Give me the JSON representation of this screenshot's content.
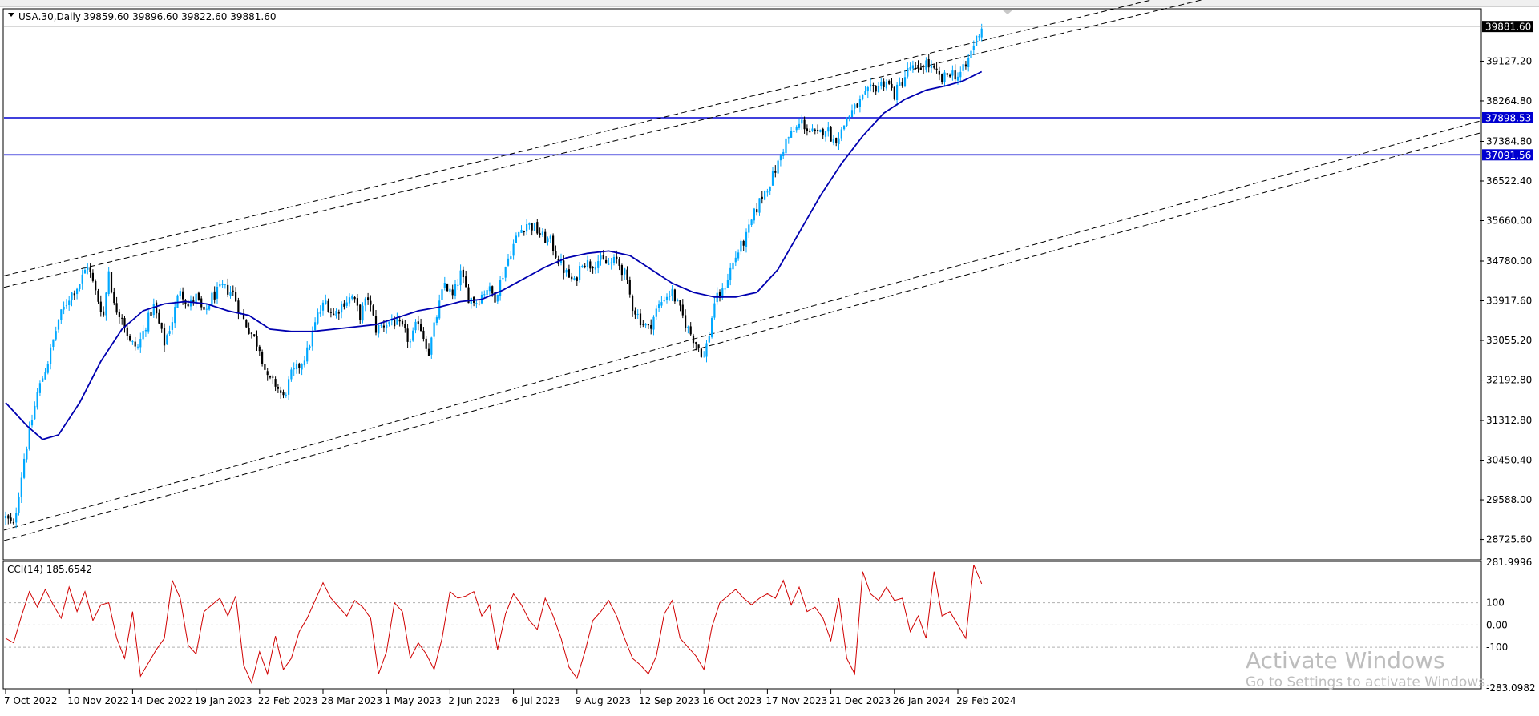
{
  "header": {
    "symbol_label": "USA.30,Daily",
    "ohlc": "39859.60 39896.60 39822.60 39881.60"
  },
  "indicator": {
    "label": "CCI(14) 185.6542",
    "scale_labels": [
      "281.9996",
      "100",
      "0.00",
      "-100",
      "-283.0982"
    ],
    "levels": [
      100,
      0,
      -100
    ]
  },
  "watermark": {
    "title": "Activate Windows",
    "subtitle": "Go to Settings to activate Windows."
  },
  "colors": {
    "bull": "#00a8ff",
    "bear": "#000000",
    "ma": "#0000b0",
    "hline": "#0000d0",
    "cci": "#d00000",
    "price_tag": "#000000",
    "hline_tag": "#0000d0"
  },
  "chart_data": {
    "type": "candlestick",
    "instrument": "USA.30",
    "timeframe": "Daily",
    "y_range": [
      28300,
      40250
    ],
    "y_tick_labels": [
      "39881.60",
      "39127.20",
      "38264.80",
      "37384.80",
      "36522.40",
      "35660.00",
      "34780.00",
      "33917.60",
      "33055.20",
      "32192.80",
      "31312.80",
      "30450.40",
      "29588.00",
      "28725.60"
    ],
    "y_tick_values": [
      39881.6,
      39127.2,
      38264.8,
      37384.8,
      36522.4,
      35660.0,
      34780.0,
      33917.6,
      33055.2,
      32192.8,
      31312.8,
      30450.4,
      29588.0,
      28725.6
    ],
    "x_labels": [
      "7 Oct 2022",
      "10 Nov 2022",
      "14 Dec 2022",
      "19 Jan 2023",
      "22 Feb 2023",
      "28 Mar 2023",
      "1 May 2023",
      "2 Jun 2023",
      "6 Jul 2023",
      "9 Aug 2023",
      "12 Sep 2023",
      "16 Oct 2023",
      "17 Nov 2023",
      "21 Dec 2023",
      "26 Jan 2024",
      "29 Feb 2024"
    ],
    "x_label_bars": [
      0,
      24,
      48,
      72,
      96,
      120,
      144,
      168,
      192,
      216,
      240,
      264,
      288,
      312,
      336,
      360
    ],
    "total_bars": 370,
    "price_path": [
      [
        0,
        29200
      ],
      [
        3,
        29000
      ],
      [
        7,
        30500
      ],
      [
        12,
        31900
      ],
      [
        16,
        32600
      ],
      [
        20,
        33500
      ],
      [
        24,
        34000
      ],
      [
        28,
        34300
      ],
      [
        31,
        34700
      ],
      [
        34,
        34100
      ],
      [
        37,
        33600
      ],
      [
        39,
        34600
      ],
      [
        41,
        33800
      ],
      [
        44,
        33600
      ],
      [
        47,
        33000
      ],
      [
        50,
        32900
      ],
      [
        53,
        33400
      ],
      [
        56,
        33800
      ],
      [
        60,
        33000
      ],
      [
        63,
        33500
      ],
      [
        66,
        34200
      ],
      [
        69,
        33800
      ],
      [
        72,
        34000
      ],
      [
        75,
        33600
      ],
      [
        78,
        34000
      ],
      [
        82,
        34200
      ],
      [
        86,
        34100
      ],
      [
        89,
        33600
      ],
      [
        92,
        33300
      ],
      [
        96,
        32900
      ],
      [
        99,
        32200
      ],
      [
        102,
        32100
      ],
      [
        105,
        31800
      ],
      [
        108,
        32300
      ],
      [
        111,
        32500
      ],
      [
        114,
        32800
      ],
      [
        118,
        33600
      ],
      [
        121,
        33900
      ],
      [
        124,
        33600
      ],
      [
        128,
        33900
      ],
      [
        131,
        34000
      ],
      [
        134,
        33600
      ],
      [
        137,
        34000
      ],
      [
        140,
        33300
      ],
      [
        143,
        33400
      ],
      [
        146,
        33500
      ],
      [
        150,
        33300
      ],
      [
        153,
        33000
      ],
      [
        156,
        33500
      ],
      [
        160,
        32800
      ],
      [
        163,
        33600
      ],
      [
        166,
        34300
      ],
      [
        169,
        34000
      ],
      [
        172,
        34500
      ],
      [
        175,
        34000
      ],
      [
        178,
        33900
      ],
      [
        182,
        34200
      ],
      [
        185,
        34000
      ],
      [
        188,
        34500
      ],
      [
        191,
        35000
      ],
      [
        194,
        35400
      ],
      [
        197,
        35600
      ],
      [
        200,
        35500
      ],
      [
        203,
        35300
      ],
      [
        206,
        35200
      ],
      [
        209,
        34800
      ],
      [
        212,
        34500
      ],
      [
        215,
        34300
      ],
      [
        218,
        34800
      ],
      [
        221,
        34700
      ],
      [
        224,
        34800
      ],
      [
        228,
        34700
      ],
      [
        231,
        34800
      ],
      [
        234,
        34500
      ],
      [
        237,
        33800
      ],
      [
        240,
        33500
      ],
      [
        243,
        33300
      ],
      [
        246,
        33700
      ],
      [
        249,
        34000
      ],
      [
        252,
        34100
      ],
      [
        255,
        33700
      ],
      [
        258,
        33300
      ],
      [
        261,
        33000
      ],
      [
        264,
        32700
      ],
      [
        266,
        33200
      ],
      [
        268,
        33900
      ],
      [
        271,
        34100
      ],
      [
        274,
        34600
      ],
      [
        277,
        35000
      ],
      [
        280,
        35300
      ],
      [
        283,
        35800
      ],
      [
        286,
        36200
      ],
      [
        289,
        36500
      ],
      [
        292,
        36900
      ],
      [
        295,
        37400
      ],
      [
        298,
        37600
      ],
      [
        301,
        37800
      ],
      [
        304,
        37600
      ],
      [
        307,
        37500
      ],
      [
        310,
        37700
      ],
      [
        313,
        37400
      ],
      [
        316,
        37600
      ],
      [
        318,
        37900
      ],
      [
        321,
        38100
      ],
      [
        324,
        38300
      ],
      [
        327,
        38500
      ],
      [
        330,
        38600
      ],
      [
        333,
        38700
      ],
      [
        336,
        38400
      ],
      [
        339,
        38700
      ],
      [
        342,
        39000
      ],
      [
        345,
        38900
      ],
      [
        348,
        39100
      ],
      [
        351,
        38900
      ],
      [
        354,
        38700
      ],
      [
        357,
        38900
      ],
      [
        360,
        38800
      ],
      [
        363,
        39000
      ],
      [
        366,
        39500
      ],
      [
        369,
        39880
      ]
    ],
    "ma_path": [
      [
        0,
        31700
      ],
      [
        8,
        31200
      ],
      [
        14,
        30900
      ],
      [
        20,
        31000
      ],
      [
        28,
        31700
      ],
      [
        36,
        32600
      ],
      [
        44,
        33300
      ],
      [
        52,
        33700
      ],
      [
        60,
        33850
      ],
      [
        68,
        33900
      ],
      [
        76,
        33850
      ],
      [
        84,
        33700
      ],
      [
        92,
        33600
      ],
      [
        100,
        33300
      ],
      [
        108,
        33250
      ],
      [
        116,
        33250
      ],
      [
        124,
        33300
      ],
      [
        132,
        33350
      ],
      [
        140,
        33400
      ],
      [
        148,
        33550
      ],
      [
        156,
        33700
      ],
      [
        164,
        33780
      ],
      [
        172,
        33900
      ],
      [
        180,
        33950
      ],
      [
        188,
        34150
      ],
      [
        196,
        34400
      ],
      [
        204,
        34650
      ],
      [
        212,
        34850
      ],
      [
        220,
        34950
      ],
      [
        228,
        35000
      ],
      [
        236,
        34900
      ],
      [
        244,
        34600
      ],
      [
        252,
        34300
      ],
      [
        260,
        34100
      ],
      [
        268,
        34000
      ],
      [
        276,
        34000
      ],
      [
        284,
        34100
      ],
      [
        292,
        34600
      ],
      [
        300,
        35400
      ],
      [
        308,
        36200
      ],
      [
        316,
        36900
      ],
      [
        324,
        37500
      ],
      [
        332,
        38000
      ],
      [
        340,
        38300
      ],
      [
        348,
        38500
      ],
      [
        356,
        38600
      ],
      [
        362,
        38700
      ],
      [
        369,
        38900
      ]
    ],
    "horizontal_lines": [
      {
        "price": 37898.53,
        "label": "37898.53"
      },
      {
        "price": 37091.56,
        "label": "37091.56"
      }
    ],
    "channel_lines": [
      {
        "name": "upper-a",
        "from": [
          0,
          34460
        ],
        "to": [
          369,
          39570
        ]
      },
      {
        "name": "upper-b",
        "from": [
          0,
          34210
        ],
        "to": [
          369,
          39310
        ]
      },
      {
        "name": "lower-a",
        "from": [
          0,
          28930
        ],
        "to": [
          369,
          34820
        ]
      },
      {
        "name": "lower-b",
        "from": [
          0,
          28700
        ],
        "to": [
          369,
          34570
        ]
      }
    ],
    "current_price": 39881.6,
    "cci_range": [
      -283.0982,
      281.9996
    ],
    "cci_path": [
      [
        0,
        -60
      ],
      [
        3,
        -80
      ],
      [
        6,
        40
      ],
      [
        9,
        150
      ],
      [
        12,
        80
      ],
      [
        15,
        160
      ],
      [
        18,
        90
      ],
      [
        21,
        30
      ],
      [
        24,
        170
      ],
      [
        27,
        60
      ],
      [
        30,
        150
      ],
      [
        33,
        20
      ],
      [
        36,
        90
      ],
      [
        39,
        100
      ],
      [
        42,
        -60
      ],
      [
        45,
        -150
      ],
      [
        48,
        60
      ],
      [
        51,
        -230
      ],
      [
        54,
        -170
      ],
      [
        57,
        -110
      ],
      [
        60,
        -60
      ],
      [
        63,
        200
      ],
      [
        66,
        120
      ],
      [
        69,
        -90
      ],
      [
        72,
        -130
      ],
      [
        75,
        60
      ],
      [
        78,
        90
      ],
      [
        81,
        120
      ],
      [
        84,
        40
      ],
      [
        87,
        130
      ],
      [
        90,
        -180
      ],
      [
        93,
        -260
      ],
      [
        96,
        -120
      ],
      [
        99,
        -220
      ],
      [
        102,
        -50
      ],
      [
        105,
        -200
      ],
      [
        108,
        -150
      ],
      [
        111,
        -30
      ],
      [
        114,
        30
      ],
      [
        117,
        110
      ],
      [
        120,
        190
      ],
      [
        123,
        120
      ],
      [
        126,
        80
      ],
      [
        129,
        40
      ],
      [
        132,
        110
      ],
      [
        135,
        80
      ],
      [
        138,
        30
      ],
      [
        141,
        -220
      ],
      [
        144,
        -120
      ],
      [
        147,
        100
      ],
      [
        150,
        60
      ],
      [
        153,
        -150
      ],
      [
        156,
        -80
      ],
      [
        159,
        -130
      ],
      [
        162,
        -200
      ],
      [
        165,
        -60
      ],
      [
        168,
        150
      ],
      [
        171,
        120
      ],
      [
        174,
        130
      ],
      [
        177,
        150
      ],
      [
        180,
        40
      ],
      [
        183,
        90
      ],
      [
        186,
        -110
      ],
      [
        189,
        50
      ],
      [
        192,
        140
      ],
      [
        195,
        90
      ],
      [
        198,
        20
      ],
      [
        201,
        -20
      ],
      [
        204,
        120
      ],
      [
        207,
        40
      ],
      [
        210,
        -60
      ],
      [
        213,
        -190
      ],
      [
        216,
        -240
      ],
      [
        219,
        -120
      ],
      [
        222,
        20
      ],
      [
        225,
        60
      ],
      [
        228,
        110
      ],
      [
        231,
        40
      ],
      [
        234,
        -60
      ],
      [
        237,
        -150
      ],
      [
        240,
        -180
      ],
      [
        243,
        -220
      ],
      [
        246,
        -140
      ],
      [
        249,
        50
      ],
      [
        252,
        110
      ],
      [
        255,
        -60
      ],
      [
        258,
        -100
      ],
      [
        261,
        -140
      ],
      [
        264,
        -200
      ],
      [
        267,
        -10
      ],
      [
        270,
        100
      ],
      [
        273,
        130
      ],
      [
        276,
        160
      ],
      [
        279,
        120
      ],
      [
        282,
        90
      ],
      [
        285,
        120
      ],
      [
        288,
        140
      ],
      [
        291,
        120
      ],
      [
        294,
        200
      ],
      [
        297,
        90
      ],
      [
        300,
        170
      ],
      [
        303,
        60
      ],
      [
        306,
        80
      ],
      [
        309,
        30
      ],
      [
        312,
        -70
      ],
      [
        315,
        120
      ],
      [
        318,
        -150
      ],
      [
        321,
        -220
      ],
      [
        324,
        240
      ],
      [
        327,
        140
      ],
      [
        330,
        110
      ],
      [
        333,
        170
      ],
      [
        336,
        110
      ],
      [
        339,
        120
      ],
      [
        342,
        -30
      ],
      [
        345,
        40
      ],
      [
        348,
        -60
      ],
      [
        351,
        240
      ],
      [
        354,
        40
      ],
      [
        357,
        60
      ],
      [
        360,
        0
      ],
      [
        363,
        -60
      ],
      [
        366,
        270
      ],
      [
        369,
        185
      ]
    ]
  }
}
